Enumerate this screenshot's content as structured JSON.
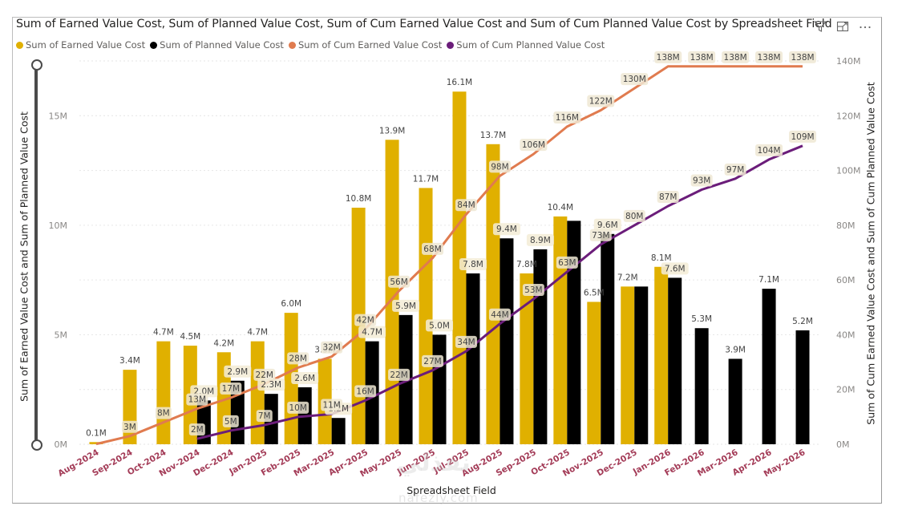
{
  "visual": {
    "title": "Sum of Earned Value Cost, Sum of Planned Value Cost, Sum of Cum Earned Value Cost and Sum of Cum Planned Value Cost by Spreadsheet Field",
    "toolbar": {
      "filter_icon": "filter-icon",
      "focus_icon": "focus-mode-icon",
      "more_icon": "more-options-icon"
    },
    "watermark": "نفذلي",
    "watermark_url": "nafezly.com"
  },
  "chart_data": {
    "type": "bar",
    "combo": "clustered column + line (dual axis)",
    "title": "Sum of Earned Value Cost, Sum of Planned Value Cost, Sum of Cum Earned Value Cost and Sum of Cum Planned Value Cost by Spreadsheet Field",
    "xlabel": "Spreadsheet Field",
    "ylabel": "Sum of Earned Value Cost and Sum of Planned Value Cost",
    "y2label": "Sum of Cum Earned Value Cost and Sum of Cum Planned Value Cost",
    "ylim": [
      0,
      17.5
    ],
    "y2lim": [
      0,
      140
    ],
    "yticks": [
      "0M",
      "5M",
      "10M",
      "15M"
    ],
    "ytick_values": [
      0,
      5,
      10,
      15
    ],
    "y2ticks": [
      "0M",
      "20M",
      "40M",
      "60M",
      "80M",
      "100M",
      "120M",
      "140M"
    ],
    "y2tick_values": [
      0,
      20,
      40,
      60,
      80,
      100,
      120,
      140
    ],
    "grid": true,
    "legend_position": "top-left",
    "units": "millions",
    "categories": [
      "Aug-2024",
      "Sep-2024",
      "Oct-2024",
      "Nov-2024",
      "Dec-2024",
      "Jan-2025",
      "Feb-2025",
      "Mar-2025",
      "Apr-2025",
      "May-2025",
      "Jun-2025",
      "Jul-2025",
      "Aug-2025",
      "Sep-2025",
      "Oct-2025",
      "Nov-2025",
      "Dec-2025",
      "Jan-2026",
      "Feb-2026",
      "Mar-2026",
      "Apr-2026",
      "May-2026"
    ],
    "series": [
      {
        "name": "Sum of Earned Value Cost",
        "type": "bar",
        "axis": "left",
        "color": "#E0B000",
        "values": [
          0.1,
          3.4,
          4.7,
          4.5,
          4.2,
          4.7,
          6.0,
          3.9,
          10.8,
          13.9,
          11.7,
          16.1,
          13.7,
          7.8,
          10.4,
          6.5,
          7.2,
          8.1,
          null,
          null,
          null,
          null
        ],
        "labels": [
          "0.1M",
          "3.4M",
          "4.7M",
          "4.5M",
          "4.2M",
          "4.7M",
          "6.0M",
          "3.9M",
          "10.8M",
          "13.9M",
          "11.7M",
          "16.1M",
          "13.7M",
          "7.8M",
          "10.4M",
          "6.5M",
          "7.2M",
          "8.1M",
          null,
          null,
          null,
          null
        ]
      },
      {
        "name": "Sum of Planned Value Cost",
        "type": "bar",
        "axis": "left",
        "color": "#000000",
        "values": [
          null,
          null,
          null,
          2.0,
          2.9,
          2.3,
          2.6,
          1.2,
          4.7,
          5.9,
          5.0,
          7.8,
          9.4,
          8.9,
          10.2,
          9.6,
          7.2,
          7.6,
          5.3,
          3.9,
          7.1,
          5.2
        ],
        "labels": [
          null,
          null,
          null,
          "2.0M",
          "2.9M",
          "2.3M",
          "2.6M",
          "1.2M",
          "4.7M",
          "5.9M",
          "5.0M",
          "7.8M",
          "9.4M",
          "8.9M",
          null,
          "9.6M",
          null,
          "7.6M",
          "5.3M",
          "3.9M",
          "7.1M",
          "5.2M"
        ]
      },
      {
        "name": "Sum of Cum Earned Value Cost",
        "type": "line",
        "axis": "right",
        "color": "#E07B4F",
        "values": [
          0.1,
          3,
          8,
          13,
          17,
          22,
          28,
          32,
          42,
          56,
          68,
          84,
          98,
          106,
          116,
          122,
          130,
          138,
          138,
          138,
          138,
          138
        ],
        "labels": [
          null,
          "3M",
          "8M",
          "13M",
          "17M",
          "22M",
          "28M",
          "32M",
          "42M",
          "56M",
          "68M",
          "84M",
          "98M",
          "106M",
          "116M",
          "122M",
          "130M",
          "138M",
          "138M",
          "138M",
          "138M",
          "138M"
        ]
      },
      {
        "name": "Sum of Cum Planned Value Cost",
        "type": "line",
        "axis": "right",
        "color": "#6B1D7A",
        "values": [
          null,
          null,
          null,
          2,
          5,
          7,
          10,
          11,
          16,
          22,
          27,
          34,
          44,
          53,
          63,
          73,
          80,
          87,
          93,
          97,
          104,
          109
        ],
        "labels": [
          null,
          null,
          null,
          "2M",
          "5M",
          "7M",
          "10M",
          "11M",
          "16M",
          "22M",
          "27M",
          "34M",
          "44M",
          "53M",
          "63M",
          "73M",
          "80M",
          "87M",
          "93M",
          "97M",
          "104M",
          "109M"
        ]
      }
    ]
  }
}
